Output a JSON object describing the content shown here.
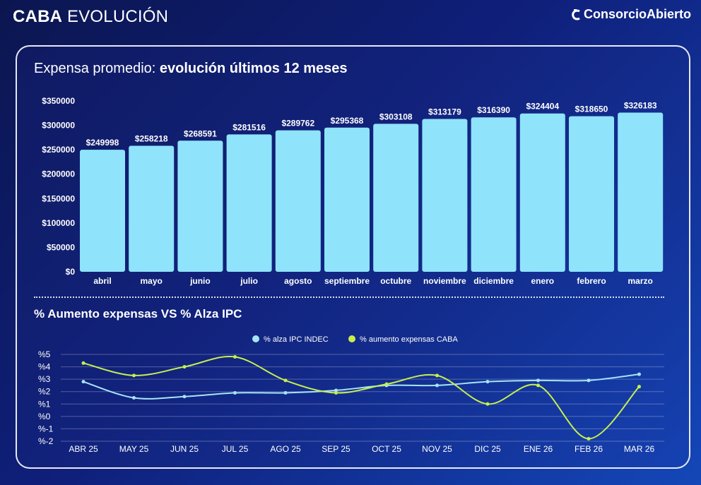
{
  "header": {
    "title_bold": "CABA",
    "title_light": "EVOLUCIÓN",
    "brand": "ConsorcioAbierto"
  },
  "panel": {
    "title_light": "Expensa promedio:",
    "title_bold": "evolución últimos 12 meses",
    "section_title": "% Aumento expensas VS % Alza IPC"
  },
  "colors": {
    "bar": "#8fe3fb",
    "ipc_line": "#a6e4f5",
    "caba_line": "#c6ef4c"
  },
  "chart_data": [
    {
      "type": "bar",
      "title": "Expensa promedio: evolución últimos 12 meses",
      "categories": [
        "abril",
        "mayo",
        "junio",
        "julio",
        "agosto",
        "septiembre",
        "octubre",
        "noviembre",
        "diciembre",
        "enero",
        "febrero",
        "marzo"
      ],
      "values": [
        249998,
        258218,
        268591,
        281516,
        289762,
        295368,
        303108,
        313179,
        316390,
        324404,
        318650,
        326183
      ],
      "data_labels": [
        "$249998",
        "$258218",
        "$268591",
        "$281516",
        "$289762",
        "$295368",
        "$303108",
        "$313179",
        "$316390",
        "$324404",
        "$318650",
        "$326183"
      ],
      "yticks": [
        "$0",
        "$50000",
        "$100000",
        "$150000",
        "$200000",
        "$250000",
        "$300000",
        "$350000"
      ],
      "ylim": [
        0,
        350000
      ],
      "grid": false
    },
    {
      "type": "line",
      "title": "% Aumento expensas VS % Alza IPC",
      "x": [
        "ABR 25",
        "MAY 25",
        "JUN 25",
        "JUL 25",
        "AGO 25",
        "SEP 25",
        "OCT 25",
        "NOV 25",
        "DIC 25",
        "ENE 26",
        "FEB 26",
        "MAR 26"
      ],
      "yticks": [
        "%-2",
        "%-1",
        "%0",
        "%1",
        "%2",
        "%3",
        "%4",
        "%5"
      ],
      "ylim": [
        -2,
        5
      ],
      "grid": true,
      "legend_position": "top-center",
      "series": [
        {
          "name": "% alza IPC INDEC",
          "values": [
            2.8,
            1.5,
            1.6,
            1.9,
            1.9,
            2.1,
            2.5,
            2.5,
            2.8,
            2.9,
            2.9,
            3.4
          ]
        },
        {
          "name": "% aumento expensas CABA",
          "values": [
            4.3,
            3.3,
            4.0,
            4.8,
            2.9,
            1.9,
            2.6,
            3.3,
            1.0,
            2.5,
            -1.8,
            2.4
          ]
        }
      ]
    }
  ]
}
